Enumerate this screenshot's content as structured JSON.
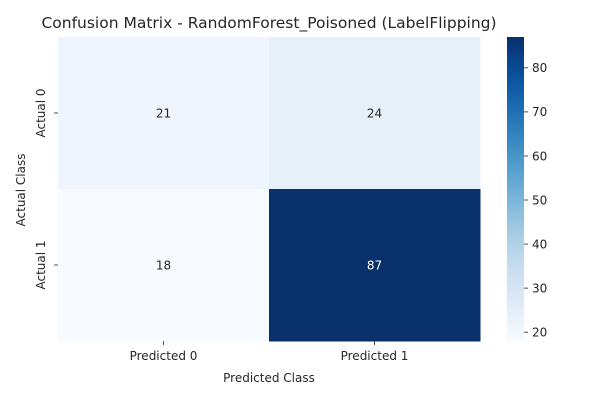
{
  "chart_data": {
    "type": "heatmap",
    "title": "Confusion Matrix - RandomForest_Poisoned (LabelFlipping)",
    "xlabel": "Predicted Class",
    "ylabel": "Actual Class",
    "x_categories": [
      "Predicted 0",
      "Predicted 1"
    ],
    "y_categories": [
      "Actual 0",
      "Actual 1"
    ],
    "values": [
      [
        21,
        24
      ],
      [
        18,
        87
      ]
    ],
    "colormap": "Blues",
    "colorbar": {
      "range": [
        18,
        87
      ],
      "ticks": [
        20,
        30,
        40,
        50,
        60,
        70,
        80
      ]
    },
    "annotations": true,
    "grid": false
  }
}
